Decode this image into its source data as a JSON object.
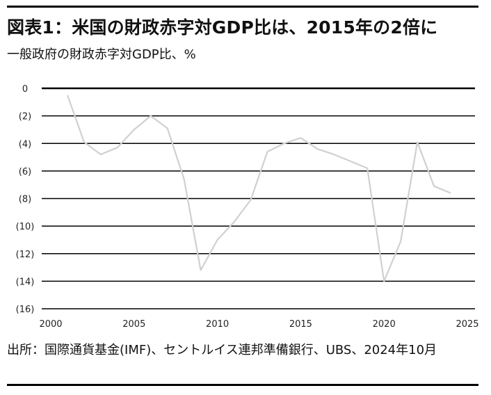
{
  "header": {
    "title": "図表1：米国の財政赤字対GDP比は、2015年の2倍に",
    "subtitle": "一般政府の財政赤字対GDP比、%"
  },
  "source": {
    "text": "出所：国際通貨基金(IMF)、セントルイス連邦準備銀行、UBS、2024年10月"
  },
  "colors": {
    "line": "#d0d0d0",
    "grid": "#000000",
    "text": "#111111"
  },
  "chart_data": {
    "type": "line",
    "title": "一般政府の財政赤字対GDP比、%",
    "xlabel": "",
    "ylabel": "",
    "xlim": [
      2000,
      2025
    ],
    "ylim": [
      -16,
      0
    ],
    "grid": true,
    "legend": "none",
    "x_ticks": [
      "2000",
      "2005",
      "2010",
      "2015",
      "2020",
      "2025"
    ],
    "y_ticks": [
      "0",
      "(2)",
      "(4)",
      "(6)",
      "(8)",
      "(10)",
      "(12)",
      "(14)",
      "(16)"
    ],
    "x_tick_values": [
      2000,
      2005,
      2010,
      2015,
      2020,
      2025
    ],
    "y_tick_values": [
      0,
      -2,
      -4,
      -6,
      -8,
      -10,
      -12,
      -14,
      -16
    ],
    "series": [
      {
        "x": [
          2001,
          2002,
          2003,
          2004,
          2005,
          2006,
          2007,
          2008,
          2009,
          2010,
          2011,
          2012,
          2013,
          2014,
          2015,
          2016,
          2017,
          2018,
          2019,
          2020,
          2021,
          2022,
          2023,
          2024
        ],
        "values": [
          -0.5,
          -3.9,
          -4.8,
          -4.3,
          -3.0,
          -2.0,
          -2.9,
          -6.6,
          -13.2,
          -11.0,
          -9.7,
          -8.1,
          -4.6,
          -4.0,
          -3.6,
          -4.4,
          -4.8,
          -5.3,
          -5.8,
          -14.0,
          -11.1,
          -3.9,
          -7.1,
          -7.6
        ]
      }
    ]
  }
}
